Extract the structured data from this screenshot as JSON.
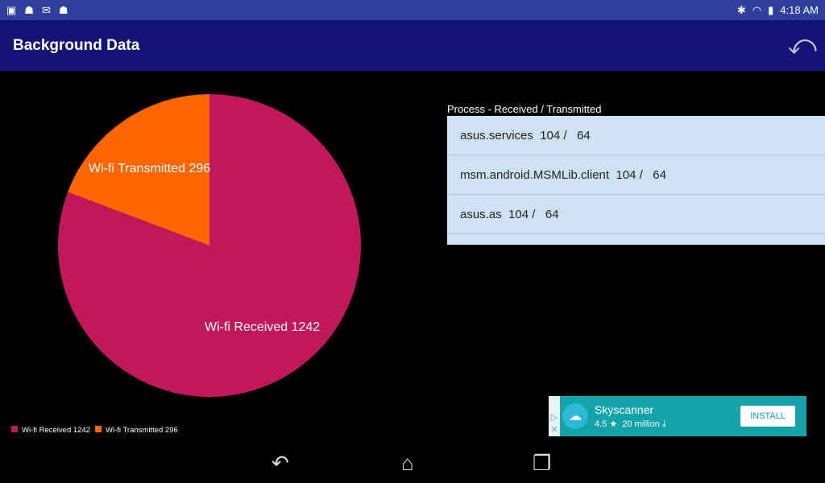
{
  "status": {
    "time": "4:18 AM"
  },
  "appbar": {
    "title": "Background Data"
  },
  "chart_data": {
    "type": "pie",
    "categories": [
      "Wi-fi Received 1242",
      "Wi-fi Transmitted 296"
    ],
    "values": [
      1242,
      296
    ],
    "colors": [
      "#c2185b",
      "#ff6600"
    ],
    "legend": "bottom-left"
  },
  "process": {
    "header": "Process - Received / Transmitted",
    "rows": [
      "asus.services  104 /   64",
      "msm.android.MSMLib.client  104 /   64",
      "asus.as  104 /   64"
    ]
  },
  "ad": {
    "name": "Skyscanner",
    "rating": "4.5",
    "installs": "20 million",
    "install_label": "INSTALL"
  }
}
